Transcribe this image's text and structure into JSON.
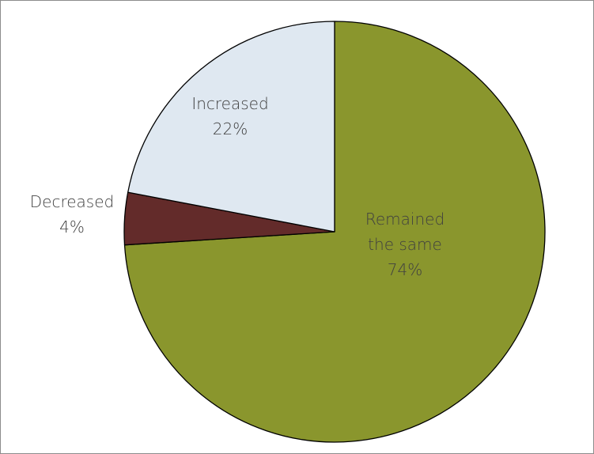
{
  "chart_data": {
    "type": "pie",
    "title": "",
    "legend": "none",
    "slices": [
      {
        "label": "Remained the same",
        "label_lines": [
          "Remained",
          "the same"
        ],
        "value": 74,
        "value_text": "74%",
        "color": "#8a962d"
      },
      {
        "label": "Decreased",
        "label_lines": [
          "Decreased"
        ],
        "value": 4,
        "value_text": "4%",
        "color": "#632b2a"
      },
      {
        "label": "Increased",
        "label_lines": [
          "Increased"
        ],
        "value": 22,
        "value_text": "22%",
        "color": "#dfe8f1"
      }
    ]
  }
}
